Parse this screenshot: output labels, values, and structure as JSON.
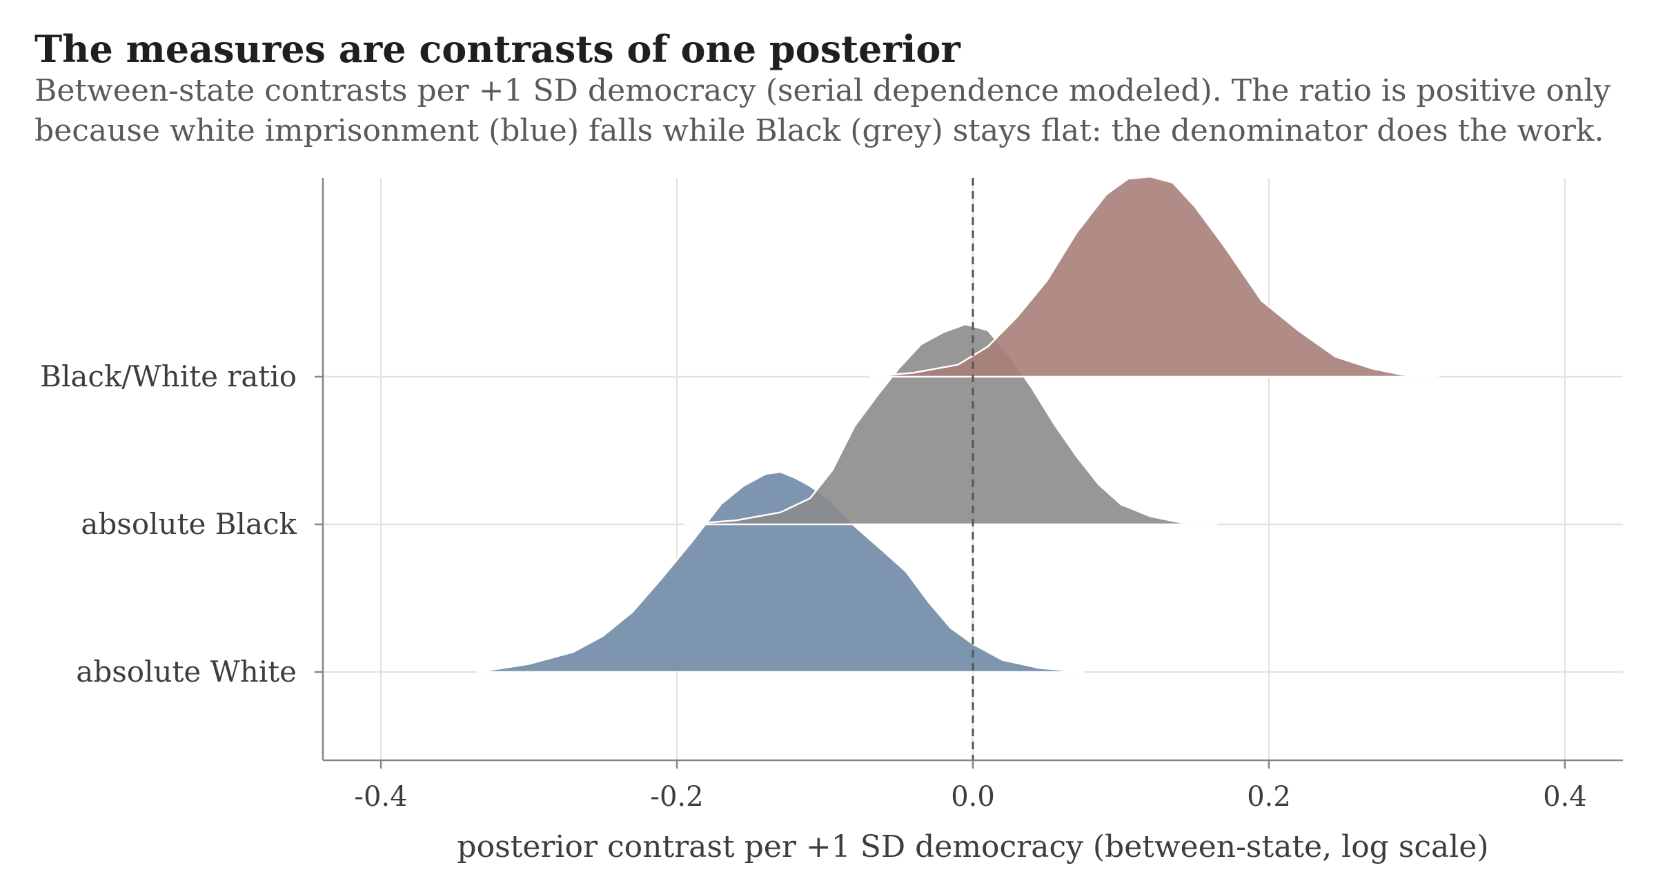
{
  "chart_data": {
    "type": "ridgeline density",
    "title": "The measures are contrasts of one posterior",
    "subtitle_lines": [
      "Between-state contrasts per +1 SD democracy (serial dependence modeled). The ratio is positive only",
      "because white imprisonment (blue) falls while Black (grey) stays flat: the denominator does the work."
    ],
    "xlabel": "posterior contrast per +1 SD democracy (between-state, log scale)",
    "ylabel": "",
    "xlim": [
      -0.44,
      0.44
    ],
    "x_ticks": [
      -0.4,
      -0.2,
      0.0,
      0.2,
      0.4
    ],
    "x_tick_labels": [
      "-0.4",
      "-0.2",
      "0.0",
      "0.2",
      "0.4"
    ],
    "reference_line": {
      "x": 0.0,
      "style": "dashed"
    },
    "grid": true,
    "categories": [
      "Black/White ratio",
      "absolute Black",
      "absolute White"
    ],
    "series": [
      {
        "name": "absolute White",
        "color": "#6f8aa5",
        "x": [
          -0.335,
          -0.3,
          -0.27,
          -0.25,
          -0.23,
          -0.21,
          -0.19,
          -0.17,
          -0.155,
          -0.14,
          -0.13,
          -0.12,
          -0.11,
          -0.095,
          -0.08,
          -0.06,
          -0.045,
          -0.03,
          -0.015,
          0.0,
          0.02,
          0.045,
          0.075
        ],
        "density": [
          0.0,
          0.04,
          0.1,
          0.18,
          0.3,
          0.47,
          0.65,
          0.84,
          0.93,
          0.99,
          1.0,
          0.97,
          0.93,
          0.85,
          0.73,
          0.6,
          0.5,
          0.35,
          0.22,
          0.14,
          0.06,
          0.02,
          0.0
        ]
      },
      {
        "name": "absolute Black",
        "color": "#8c8c8c",
        "x": [
          -0.195,
          -0.16,
          -0.13,
          -0.11,
          -0.095,
          -0.08,
          -0.065,
          -0.05,
          -0.035,
          -0.02,
          -0.005,
          0.01,
          0.025,
          0.04,
          0.055,
          0.07,
          0.085,
          0.1,
          0.12,
          0.14,
          0.165
        ],
        "density": [
          0.0,
          0.02,
          0.06,
          0.13,
          0.27,
          0.49,
          0.64,
          0.78,
          0.9,
          0.96,
          1.0,
          0.97,
          0.84,
          0.68,
          0.5,
          0.34,
          0.2,
          0.1,
          0.04,
          0.01,
          0.0
        ]
      },
      {
        "name": "Black/White ratio",
        "color": "#a9807a",
        "x": [
          -0.07,
          -0.04,
          -0.01,
          0.01,
          0.03,
          0.05,
          0.07,
          0.09,
          0.105,
          0.12,
          0.135,
          0.15,
          0.17,
          0.195,
          0.22,
          0.245,
          0.27,
          0.29,
          0.315
        ],
        "density": [
          0.0,
          0.02,
          0.06,
          0.15,
          0.3,
          0.48,
          0.72,
          0.91,
          0.99,
          1.0,
          0.97,
          0.85,
          0.65,
          0.38,
          0.23,
          0.1,
          0.04,
          0.01,
          0.0
        ]
      }
    ]
  }
}
